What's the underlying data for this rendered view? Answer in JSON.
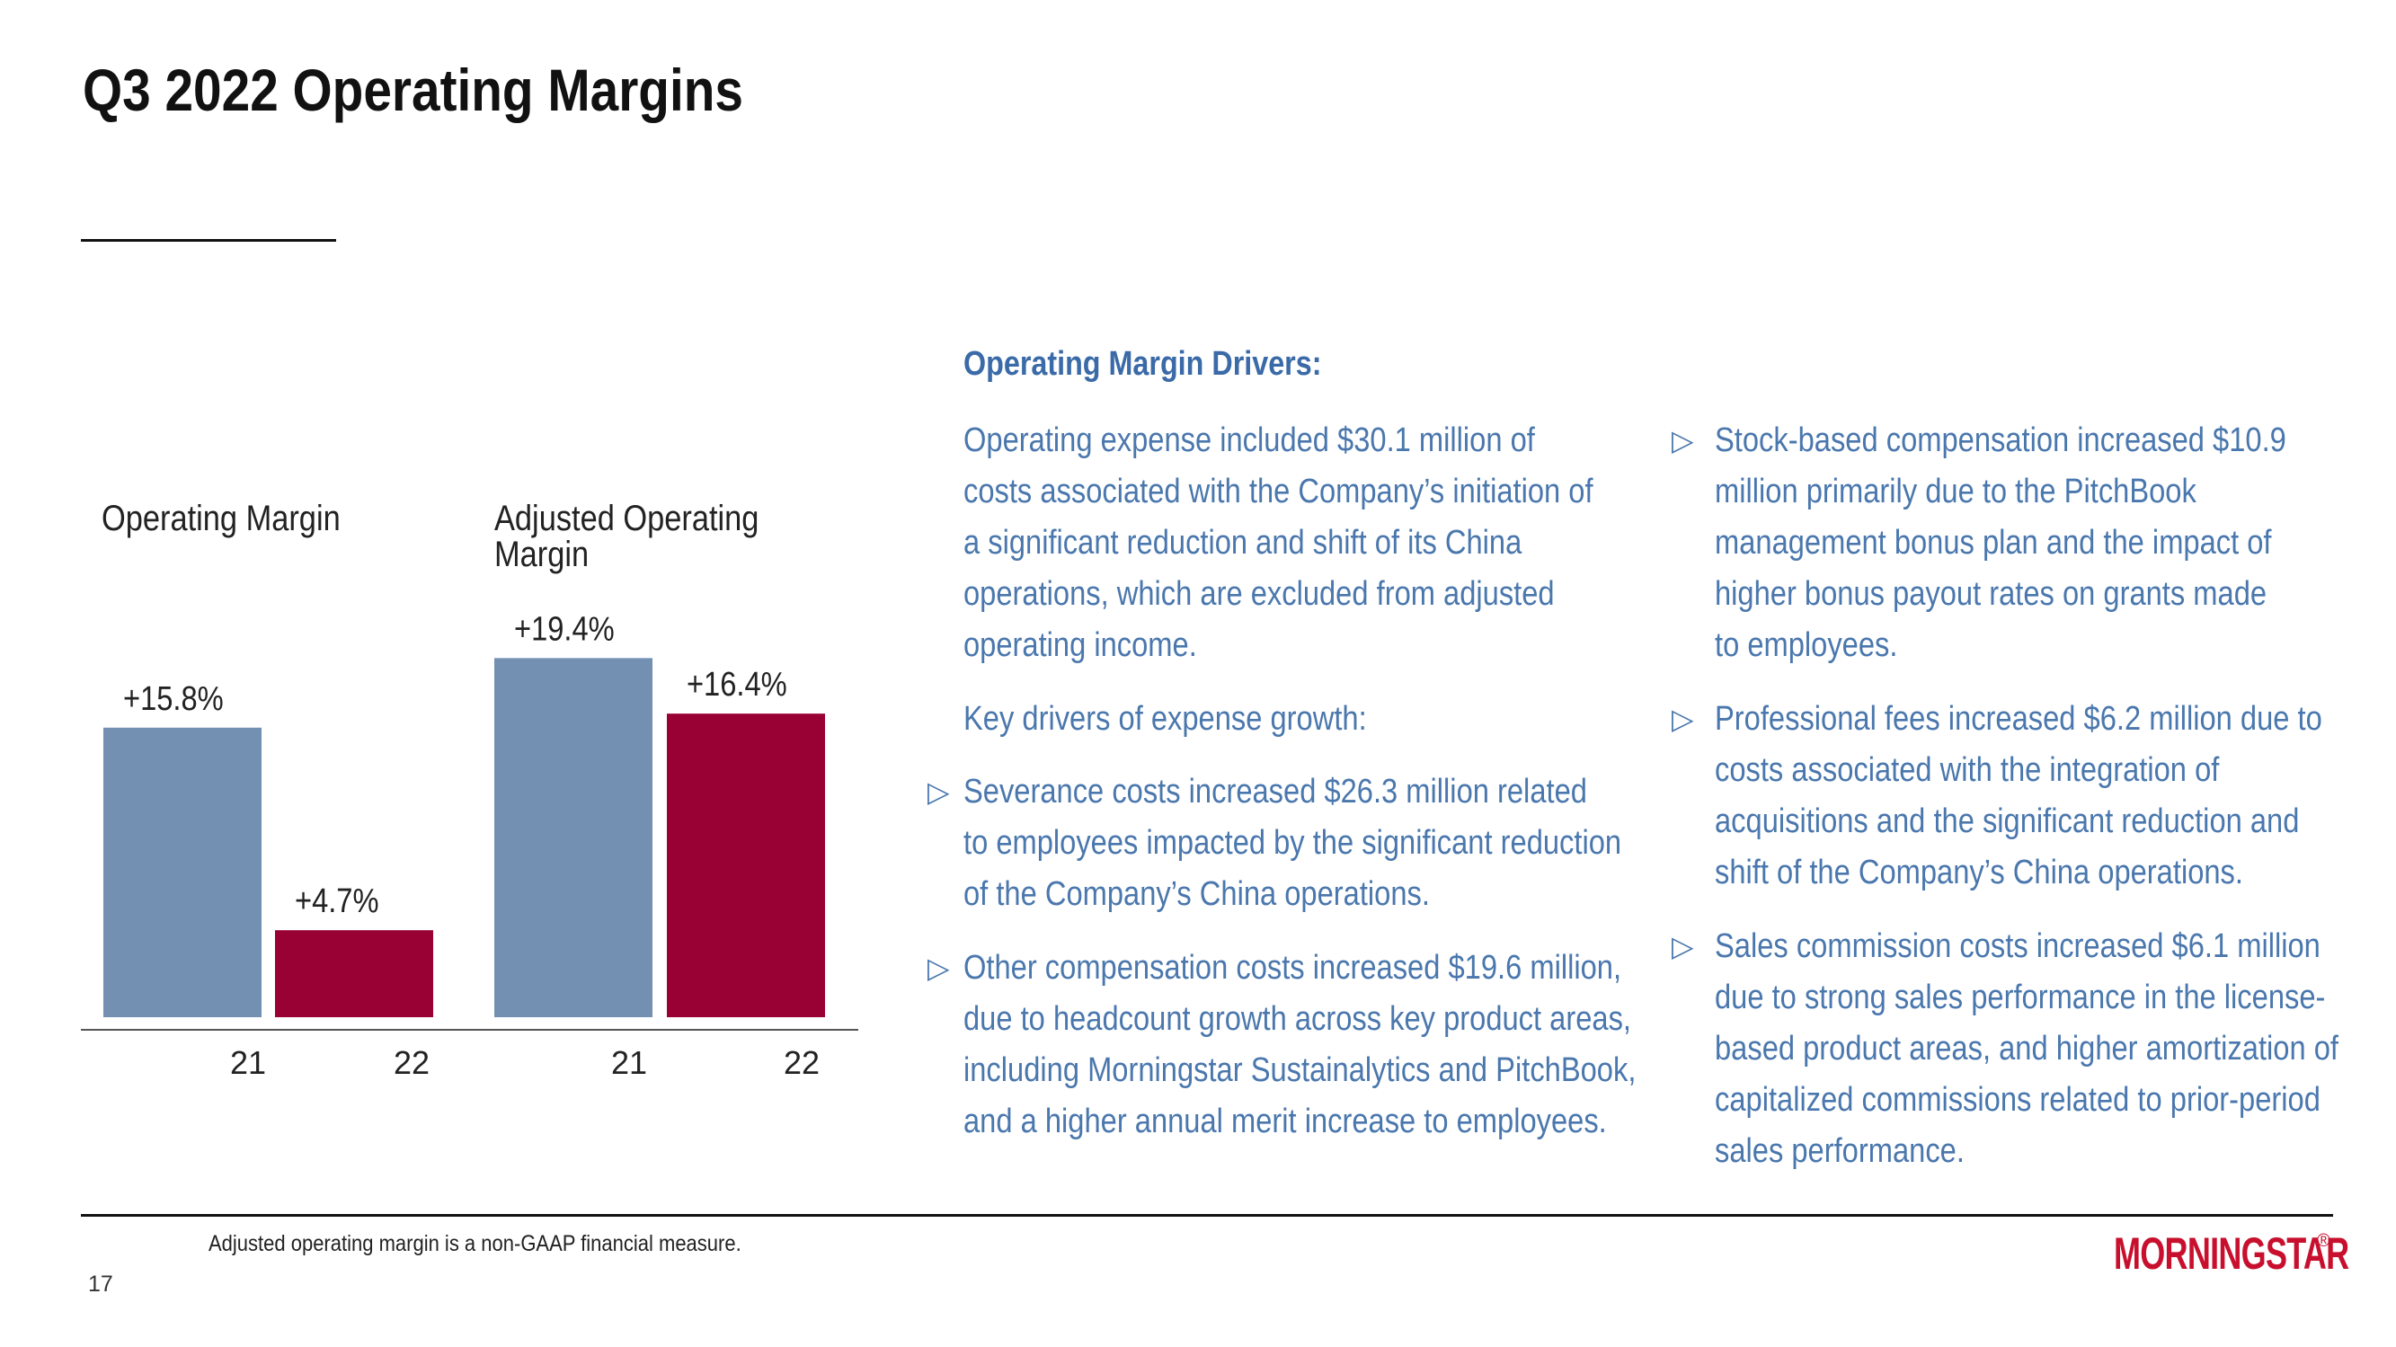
{
  "title": "Q3 2022 Operating Margins",
  "chart_data": {
    "type": "bar",
    "groups": [
      {
        "label": "Operating  Margin",
        "categories": [
          "21",
          "22"
        ],
        "values": [
          15.8,
          4.7
        ],
        "value_labels": [
          "+15.8%",
          "+4.7%"
        ]
      },
      {
        "label": "Adjusted Operating Margin",
        "label_lines": [
          "Adjusted Operating",
          "Margin"
        ],
        "categories": [
          "21",
          "22"
        ],
        "values": [
          19.4,
          16.4
        ],
        "value_labels": [
          "+19.4%",
          "+16.4%"
        ]
      }
    ],
    "ylim": [
      0,
      20
    ],
    "grid": false,
    "colors": {
      "21": "#738fb2",
      "22": "#990033"
    }
  },
  "drivers": {
    "heading": "Operating Margin Drivers:",
    "intro_lines": [
      "Operating expense included $30.1 million of",
      "costs associated with the Company’s initiation of",
      "a significant reduction and shift of its China",
      "operations, which are excluded from adjusted",
      "operating income."
    ],
    "key_drivers_label": "Key drivers of expense growth:",
    "bullet_marker": "▷",
    "left_bullets": [
      {
        "lines": [
          "Severance costs increased $26.3 million related",
          "to employees impacted by the significant reduction",
          "of the Company’s China operations."
        ]
      },
      {
        "lines": [
          "Other compensation costs increased $19.6 million,",
          "due to headcount growth across key product areas,",
          "including Morningstar Sustainalytics and PitchBook,",
          "and a higher annual merit increase to employees."
        ]
      }
    ],
    "right_bullets": [
      {
        "lines": [
          "Stock-based compensation increased $10.9",
          "million primarily due to the PitchBook",
          "management bonus plan and the impact of",
          "higher bonus payout rates on grants made",
          "to employees."
        ]
      },
      {
        "lines": [
          "Professional fees increased $6.2 million due to",
          "costs associated with the integration of",
          "acquisitions and the significant reduction and",
          "shift of the Company’s China operations."
        ]
      },
      {
        "lines": [
          "Sales commission costs increased $6.1 million",
          "due to strong sales performance in the license-",
          "based product areas, and higher amortization of",
          "capitalized commissions related to prior-period",
          "sales performance."
        ]
      }
    ]
  },
  "footer": {
    "footnote": "Adjusted operating margin is a non-GAAP financial measure.",
    "page_number": "17",
    "logo_text": "MORNINGSTAR",
    "logo_reg": "®"
  }
}
